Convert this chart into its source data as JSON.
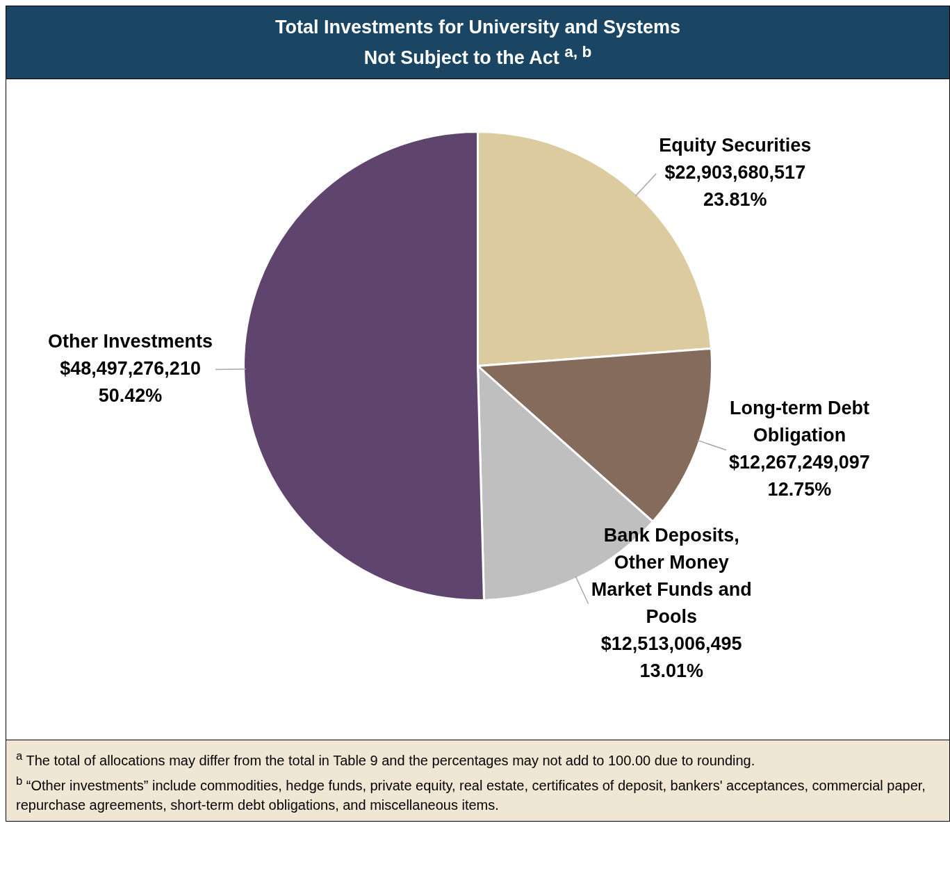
{
  "chart_data": {
    "type": "pie",
    "title": "Total Investments for University and Systems\nNot Subject to the Act $^{a, b}$",
    "categories": [
      "Equity Securities",
      "Long-term Debt Obligation",
      "Bank Deposits, Other Money Market Funds and Pools",
      "Other Investments"
    ],
    "values": [
      22903680517,
      12267249097,
      12513006495,
      48497276210
    ],
    "value_labels": [
      "$22,903,680,517\n23.81%",
      "$12,267,249,097\n12.75%",
      "$12,513,006,495\n13.01%",
      "$48,497,276,210\n50.42%"
    ],
    "colors": [
      "#dccb9e",
      "#846b5b",
      "#bfbfbf",
      "#5f456e"
    ],
    "legend": false,
    "annotations": [
      "$^{a}$ The total of allocations may differ from the total in Table 9 and the percentages may not add to 100.00 due to rounding.",
      "$^{b}$ “Other investments” include commodities, hedge funds, private equity, real estate, certificates of deposit, bankers' acceptances, commercial paper, repurchase agreements, short-term debt obligations, and miscellaneous items."
    ]
  }
}
